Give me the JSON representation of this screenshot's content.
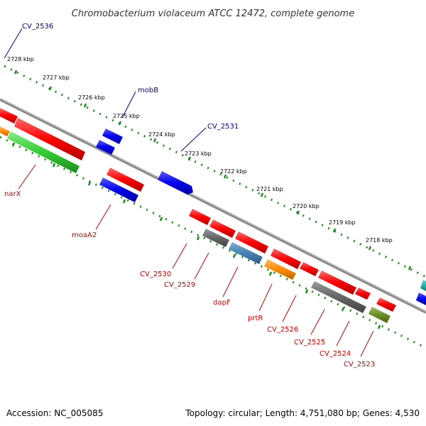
{
  "title": "Chromobacterium violaceum ATCC 12472, complete genome",
  "footer": {
    "accession": "Accession: NC_005085",
    "summary": "Topology: circular; Length: 4,751,080 bp; Genes: 4,530"
  },
  "ticks": [
    "2728 kbp",
    "2727 kbp",
    "2726 kbp",
    "2725 kbp",
    "2724 kbp",
    "2723 kbp",
    "2722 kbp",
    "2721 kbp",
    "2720 kbp",
    "2719 kbp",
    "2718 kbp"
  ],
  "top_labels": [
    "CV_2536",
    "mobB",
    "CV_2531"
  ],
  "bottom_labels": [
    "narX",
    "moaA2",
    "CV_2530",
    "CV_2529",
    "dapF",
    "prtR",
    "CV_2526",
    "CV_2525",
    "CV_2524",
    "CV_2523"
  ],
  "colors": {
    "red": "#ff0000",
    "blue": "#0000ee",
    "green": "#33cc33",
    "gray": "#666666",
    "steelblue": "#4682b4",
    "orange": "#ff8c00",
    "olive": "#6b8e23",
    "cyan": "#20b2aa",
    "backbone": "#888888",
    "ticks": "#228b22",
    "label_top": "#00008b",
    "label_bottom": "#cc0000"
  }
}
